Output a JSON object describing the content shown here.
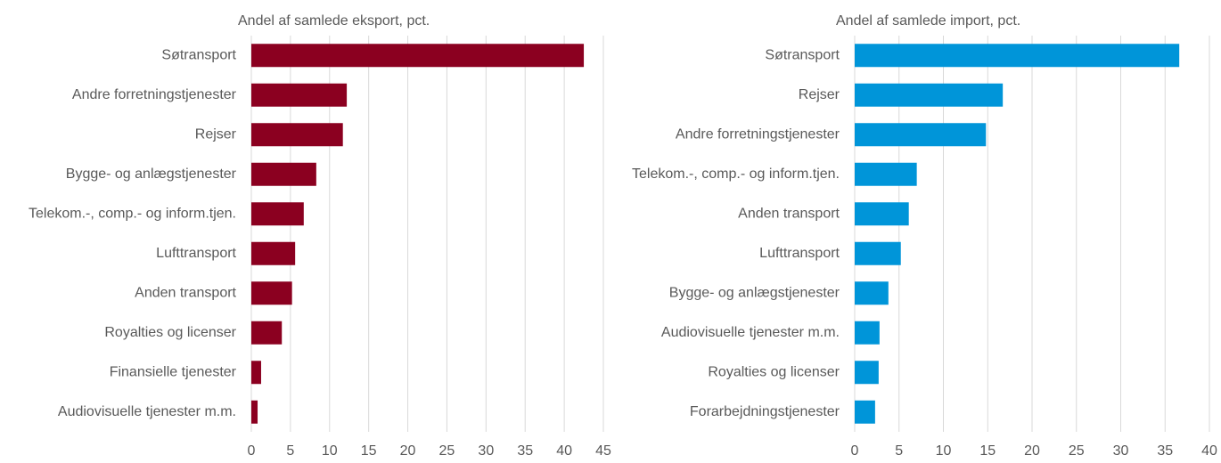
{
  "chart_data": [
    {
      "type": "bar",
      "orientation": "horizontal",
      "title": "Andel af samlede eksport, pct.",
      "categories": [
        "Søtransport",
        "Andre forretningstjenester",
        "Rejser",
        "Bygge- og anlægstjenester",
        "Telekom.-, comp.- og inform.tjen.",
        "Lufttransport",
        "Anden transport",
        "Royalties og licenser",
        "Finansielle tjenester",
        "Audiovisuelle tjenester m.m."
      ],
      "values": [
        42.5,
        12.2,
        11.7,
        8.3,
        6.7,
        5.6,
        5.2,
        3.9,
        1.25,
        0.8
      ],
      "color": "#8b0020",
      "xlim": [
        0,
        45
      ],
      "xticks": [
        0,
        5,
        10,
        15,
        20,
        25,
        30,
        35,
        40,
        45
      ],
      "grid": true
    },
    {
      "type": "bar",
      "orientation": "horizontal",
      "title": "Andel af samlede import, pct.",
      "categories": [
        "Søtransport",
        "Rejser",
        "Andre forretningstjenester",
        "Telekom.-, comp.- og inform.tjen.",
        "Anden transport",
        "Lufttransport",
        "Bygge- og anlægstjenester",
        "Audiovisuelle tjenester m.m.",
        "Royalties og licenser",
        "Forarbejdningstjenester"
      ],
      "values": [
        36.6,
        16.7,
        14.8,
        7.0,
        6.1,
        5.2,
        3.8,
        2.8,
        2.7,
        2.3
      ],
      "color": "#0095d9",
      "xlim": [
        0,
        40
      ],
      "xticks": [
        0,
        5,
        10,
        15,
        20,
        25,
        30,
        35,
        40
      ],
      "grid": true
    }
  ]
}
